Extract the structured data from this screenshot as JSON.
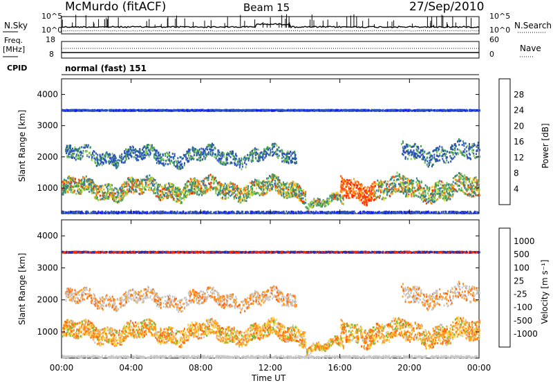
{
  "header": {
    "station": "McMurdo (fitACF)",
    "beam": "Beam 15",
    "date": "27/Sep/2010"
  },
  "noise_panel": {
    "left_label": "N.Sky",
    "right_label": "N.Search",
    "left_ticks": [
      "10^5",
      "10^0"
    ],
    "right_ticks": [
      "10^5",
      "10^0"
    ]
  },
  "freq_panel": {
    "left_label_top": "Freq.",
    "left_label_bottom": "[MHz]",
    "right_label": "Nave",
    "left_ticks": [
      "18",
      "8"
    ],
    "right_ticks": [
      "60",
      "0"
    ]
  },
  "cpid_panel": {
    "label": "CPID",
    "mode": "normal (fast) 151"
  },
  "colors": {
    "power_scale": [
      "#1a1aff",
      "#2b55b5",
      "#3d7a9a",
      "#3d9a5a",
      "#7ec850",
      "#f0d020",
      "#ff9a20",
      "#ff6a10",
      "#ff2a00"
    ],
    "velocity_scale": [
      "#2a30b0",
      "#3a6ab0",
      "#3a8a5a",
      "#6ac03a",
      "#c8c8c8",
      "#ffd44a",
      "#ff9a20",
      "#ff6a10",
      "#ff2a00"
    ]
  },
  "chart_data": [
    {
      "type": "heatmap",
      "ylabel": "Slant Range [km]",
      "ylim": [
        180,
        4500
      ],
      "yticks": [
        "1000",
        "2000",
        "3000",
        "4000"
      ],
      "xticks": [
        "00:00",
        "04:00",
        "08:00",
        "12:00",
        "16:00",
        "20:00",
        "00:00"
      ],
      "colorbar_label": "Power [dB]",
      "colorbar_ticks": [
        "28",
        "24",
        "20",
        "16",
        "12",
        "8",
        "4"
      ]
    },
    {
      "type": "heatmap",
      "ylabel": "Slant Range [km]",
      "ylim": [
        180,
        4500
      ],
      "yticks": [
        "1000",
        "2000",
        "3000",
        "4000"
      ],
      "xticks": [
        "00:00",
        "04:00",
        "08:00",
        "12:00",
        "16:00",
        "20:00",
        "00:00"
      ],
      "xlabel": "Time UT",
      "colorbar_label": "Velocity [m s⁻¹]",
      "colorbar_ticks": [
        "1000",
        "500",
        "100",
        "25",
        "-25",
        "-100",
        "-500",
        "-1000"
      ]
    }
  ]
}
